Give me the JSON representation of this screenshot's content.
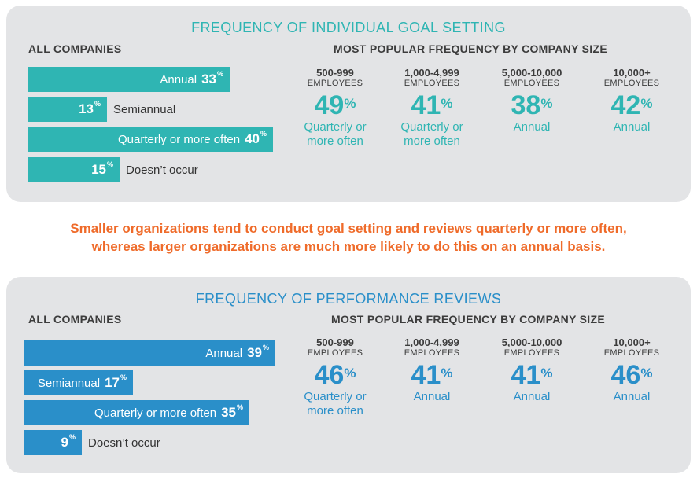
{
  "colors": {
    "teal": "#2fb5b3",
    "blue": "#2a8fc9",
    "orange": "#ef6b2a",
    "panel": "#e3e4e6"
  },
  "note": {
    "line1": "Smaller organizations tend to conduct goal setting and reviews quarterly or more often,",
    "line2": "whereas larger organizations are much more likely to do this on an annual basis."
  },
  "chart_data": [
    {
      "type": "bar",
      "title": "FREQUENCY OF INDIVIDUAL GOAL SETTING",
      "subtitle": "ALL COMPANIES",
      "categories": [
        "Annual",
        "Semiannual",
        "Quarterly or more often",
        "Doesn’t occur"
      ],
      "values": [
        33,
        13,
        40,
        15
      ],
      "unit": "%",
      "label_inside": [
        true,
        false,
        true,
        false
      ],
      "size_heading": "MOST POPULAR FREQUENCY BY COMPANY SIZE",
      "sizes": [
        {
          "size": "500-999",
          "employees": "EMPLOYEES",
          "value": 49,
          "freq_lines": [
            "Quarterly or",
            "more often"
          ]
        },
        {
          "size": "1,000-4,999",
          "employees": "EMPLOYEES",
          "value": 41,
          "freq_lines": [
            "Quarterly or",
            "more often"
          ]
        },
        {
          "size": "5,000-10,000",
          "employees": "EMPLOYEES",
          "value": 38,
          "freq_lines": [
            "Annual"
          ]
        },
        {
          "size": "10,000+",
          "employees": "EMPLOYEES",
          "value": 42,
          "freq_lines": [
            "Annual"
          ]
        }
      ]
    },
    {
      "type": "bar",
      "title": "FREQUENCY OF PERFORMANCE REVIEWS",
      "subtitle": "ALL COMPANIES",
      "categories": [
        "Annual",
        "Semiannual",
        "Quarterly or more often",
        "Doesn’t occur"
      ],
      "values": [
        39,
        17,
        35,
        9
      ],
      "unit": "%",
      "label_inside": [
        true,
        true,
        true,
        false
      ],
      "size_heading": "MOST POPULAR FREQUENCY BY COMPANY SIZE",
      "sizes": [
        {
          "size": "500-999",
          "employees": "EMPLOYEES",
          "value": 46,
          "freq_lines": [
            "Quarterly or",
            "more often"
          ]
        },
        {
          "size": "1,000-4,999",
          "employees": "EMPLOYEES",
          "value": 41,
          "freq_lines": [
            "Annual"
          ]
        },
        {
          "size": "5,000-10,000",
          "employees": "EMPLOYEES",
          "value": 41,
          "freq_lines": [
            "Annual"
          ]
        },
        {
          "size": "10,000+",
          "employees": "EMPLOYEES",
          "value": 46,
          "freq_lines": [
            "Annual"
          ]
        }
      ]
    }
  ]
}
